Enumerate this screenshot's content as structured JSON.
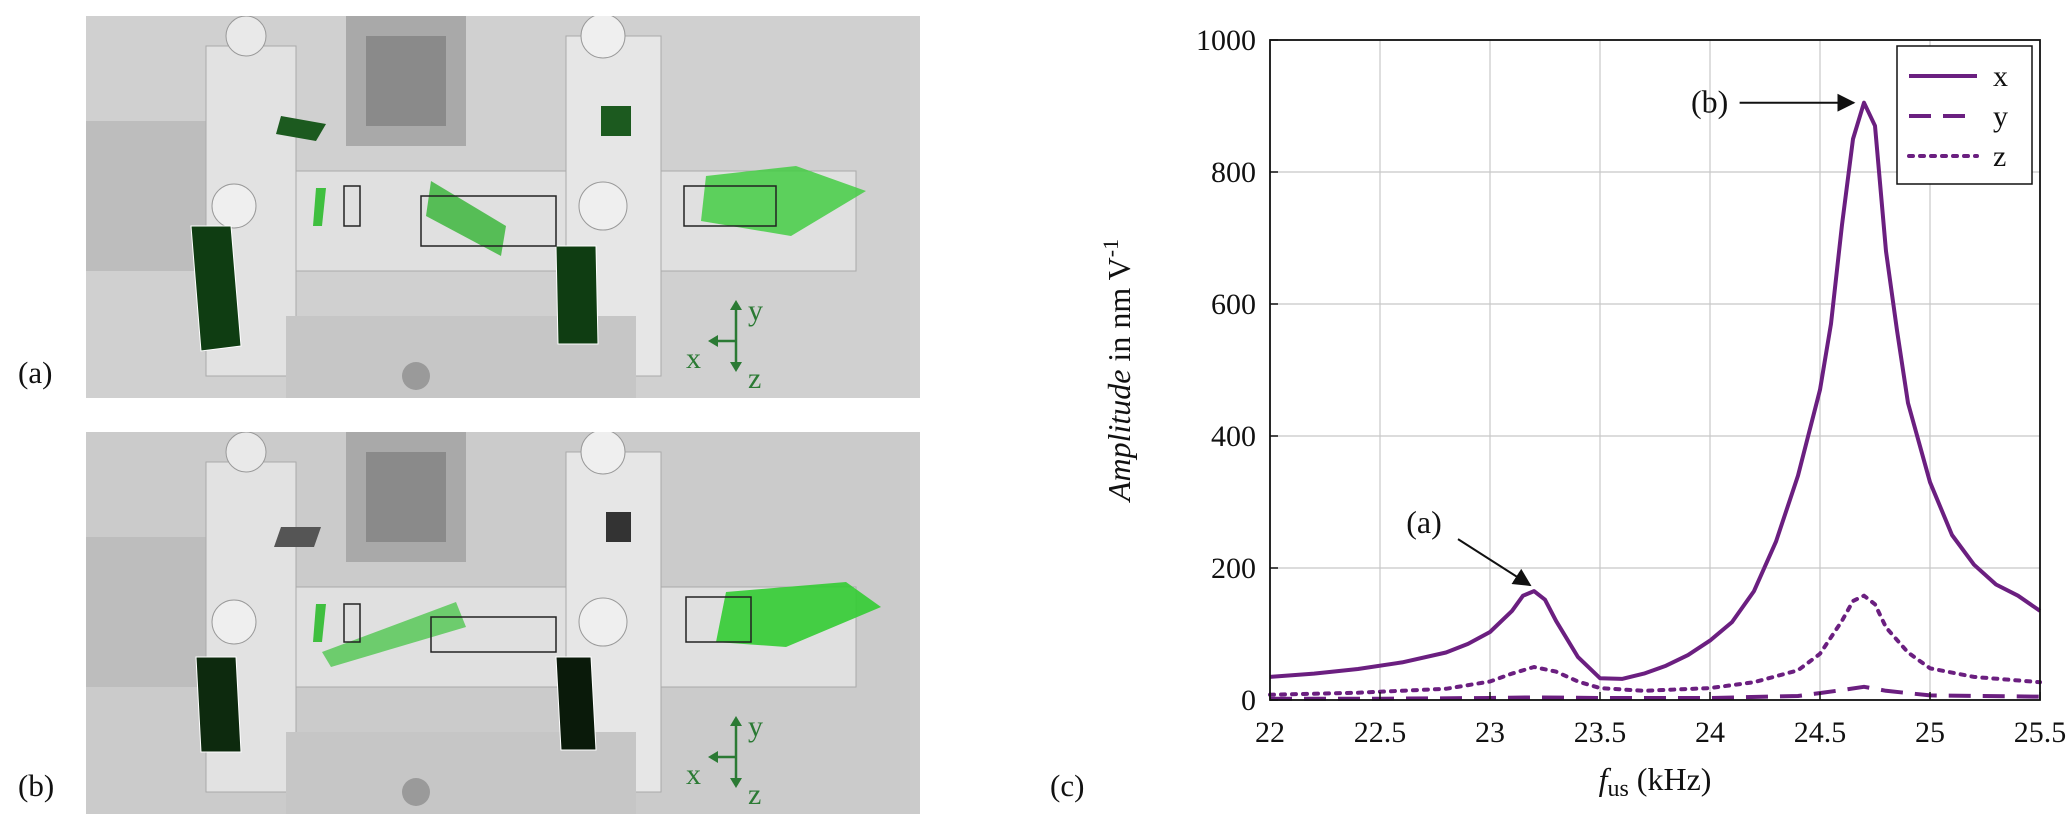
{
  "panels": {
    "a_label": "(a)",
    "b_label": "(b)",
    "c_label": "(c)",
    "axes_triad": {
      "x": "x",
      "y": "y",
      "z": "z"
    }
  },
  "colors": {
    "series": "#6b1f80",
    "photo_bg": "#cfcfcf",
    "mode_green": "#3fbf3f",
    "triad_green": "#2b7a34"
  },
  "chart_data": {
    "type": "line",
    "xlabel_prefix": "f",
    "xlabel_sub": "us",
    "xlabel_suffix": " (kHz)",
    "ylabel_italic": "Amplitude",
    "ylabel_rest": " in nm V",
    "ylabel_sup": "-1",
    "xlim": [
      22,
      25.5
    ],
    "ylim": [
      0,
      1000
    ],
    "xticks": [
      "22",
      "22.5",
      "23",
      "23.5",
      "24",
      "24.5",
      "25",
      "25.5"
    ],
    "yticks": [
      "0",
      "200",
      "400",
      "600",
      "800",
      "1000"
    ],
    "grid": true,
    "legend_position": "top-right",
    "series": [
      {
        "name": "x",
        "style": "solid",
        "x": [
          22.0,
          22.2,
          22.4,
          22.6,
          22.8,
          22.9,
          23.0,
          23.1,
          23.15,
          23.2,
          23.25,
          23.3,
          23.4,
          23.5,
          23.6,
          23.7,
          23.8,
          23.9,
          24.0,
          24.1,
          24.2,
          24.3,
          24.4,
          24.5,
          24.55,
          24.6,
          24.65,
          24.7,
          24.75,
          24.8,
          24.85,
          24.9,
          25.0,
          25.1,
          25.2,
          25.3,
          25.4,
          25.5
        ],
        "y": [
          35,
          40,
          47,
          57,
          72,
          85,
          103,
          135,
          158,
          165,
          152,
          120,
          65,
          33,
          32,
          40,
          52,
          68,
          90,
          118,
          165,
          240,
          340,
          470,
          570,
          720,
          850,
          905,
          870,
          680,
          560,
          450,
          330,
          250,
          205,
          175,
          158,
          135
        ]
      },
      {
        "name": "y",
        "style": "dashed",
        "x": [
          22.0,
          22.5,
          23.0,
          23.2,
          23.5,
          24.0,
          24.4,
          24.6,
          24.7,
          24.8,
          25.0,
          25.5
        ],
        "y": [
          2,
          2,
          3,
          4,
          3,
          3,
          6,
          15,
          20,
          14,
          7,
          5
        ]
      },
      {
        "name": "z",
        "style": "dotted",
        "x": [
          22.0,
          22.4,
          22.8,
          23.0,
          23.1,
          23.2,
          23.3,
          23.4,
          23.5,
          23.7,
          24.0,
          24.2,
          24.4,
          24.5,
          24.6,
          24.65,
          24.7,
          24.75,
          24.8,
          24.9,
          25.0,
          25.2,
          25.5
        ],
        "y": [
          8,
          11,
          17,
          28,
          40,
          50,
          43,
          28,
          18,
          14,
          18,
          27,
          45,
          70,
          120,
          150,
          158,
          145,
          110,
          72,
          48,
          35,
          27
        ]
      }
    ],
    "annotations": [
      {
        "text": "(a)",
        "target_x": 23.2,
        "target_y": 165
      },
      {
        "text": "(b)",
        "target_x": 24.68,
        "target_y": 905
      }
    ]
  }
}
